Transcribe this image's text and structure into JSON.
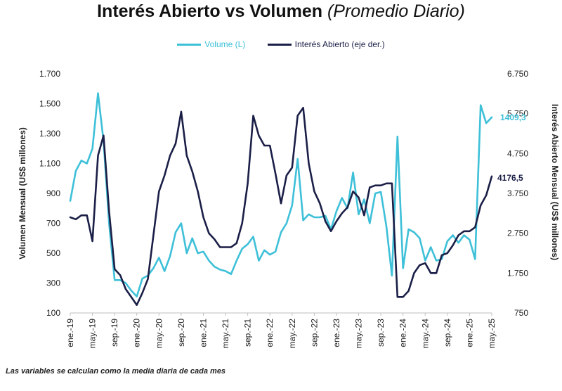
{
  "header": {
    "title": "Interés Abierto vs Volumen",
    "subtitle": "(Promedio Diario)"
  },
  "footnote": "Las variables se calculan como la media diaria de cada mes",
  "colors": {
    "volume": "#3ec0d8",
    "open_interest": "#1b1f47"
  },
  "chart_data": {
    "type": "line",
    "title": "Interés Abierto vs Volumen (Promedio Diario)",
    "ylabel_left": "Volumen Mensual (US$ millones)",
    "ylabel_right": "Interés Abierto Mensual (US$ millones)",
    "ylim_left": [
      100,
      1700
    ],
    "ylim_right": [
      750,
      6750
    ],
    "yticks_left": [
      "100",
      "300",
      "500",
      "700",
      "900",
      "1.100",
      "1.300",
      "1.500",
      "1.700"
    ],
    "yticks_right": [
      "750",
      "1.750",
      "2.750",
      "3.750",
      "4.750",
      "5.750",
      "6.750"
    ],
    "xtick_labels": [
      "ene.-19",
      "may.-19",
      "sep.-19",
      "ene.-20",
      "may.-20",
      "sep.-20",
      "ene.-21",
      "may.-21",
      "sep.-21",
      "ene.-22",
      "may.-22",
      "sep.-22",
      "ene.-23",
      "may.-23",
      "sep.-23",
      "ene.-24",
      "may.-24",
      "sep.-24",
      "ene.-25",
      "may.-25"
    ],
    "grid": false,
    "legend_position": "top-center",
    "x": [
      "ene.-19",
      "feb.-19",
      "mar.-19",
      "abr.-19",
      "may.-19",
      "jun.-19",
      "jul.-19",
      "ago.-19",
      "sep.-19",
      "oct.-19",
      "nov.-19",
      "dic.-19",
      "ene.-20",
      "feb.-20",
      "mar.-20",
      "abr.-20",
      "may.-20",
      "jun.-20",
      "jul.-20",
      "ago.-20",
      "sep.-20",
      "oct.-20",
      "nov.-20",
      "dic.-20",
      "ene.-21",
      "feb.-21",
      "mar.-21",
      "abr.-21",
      "may.-21",
      "jun.-21",
      "jul.-21",
      "ago.-21",
      "sep.-21",
      "oct.-21",
      "nov.-21",
      "dic.-21",
      "ene.-22",
      "feb.-22",
      "mar.-22",
      "abr.-22",
      "may.-22",
      "jun.-22",
      "jul.-22",
      "ago.-22",
      "sep.-22",
      "oct.-22",
      "nov.-22",
      "dic.-22",
      "ene.-23",
      "feb.-23",
      "mar.-23",
      "abr.-23",
      "may.-23",
      "jun.-23",
      "jul.-23",
      "ago.-23",
      "sep.-23",
      "oct.-23",
      "nov.-23",
      "dic.-23",
      "ene.-24",
      "feb.-24",
      "mar.-24",
      "abr.-24",
      "may.-24",
      "jun.-24",
      "jul.-24",
      "ago.-24",
      "sep.-24",
      "oct.-24",
      "nov.-24",
      "dic.-24",
      "ene.-25",
      "feb.-25",
      "mar.-25",
      "abr.-25",
      "may.-25"
    ],
    "series": [
      {
        "name": "Volume (L)",
        "axis": "left",
        "values": [
          850,
          1050,
          1120,
          1100,
          1200,
          1570,
          1250,
          700,
          320,
          320,
          300,
          250,
          210,
          330,
          350,
          400,
          470,
          380,
          480,
          640,
          700,
          500,
          600,
          500,
          510,
          450,
          410,
          390,
          380,
          360,
          450,
          530,
          560,
          610,
          450,
          520,
          490,
          510,
          640,
          700,
          820,
          1130,
          720,
          760,
          740,
          740,
          750,
          660,
          780,
          870,
          800,
          1040,
          760,
          860,
          700,
          900,
          910,
          680,
          350,
          1280,
          400,
          660,
          640,
          600,
          450,
          540,
          450,
          460,
          580,
          620,
          570,
          620,
          590,
          460,
          1490,
          1370,
          1409.3
        ]
      },
      {
        "name": "Interés Abierto (eje der.)",
        "axis": "right",
        "values": [
          3150,
          3100,
          3200,
          3200,
          2550,
          4700,
          5200,
          3300,
          1850,
          1700,
          1350,
          1150,
          950,
          1250,
          1600,
          2700,
          3800,
          4200,
          4700,
          5000,
          5800,
          4700,
          4300,
          3800,
          3150,
          2750,
          2600,
          2400,
          2400,
          2400,
          2500,
          3000,
          4000,
          5700,
          5200,
          4950,
          4950,
          4250,
          3500,
          4200,
          4400,
          5700,
          5900,
          4500,
          3800,
          3500,
          3050,
          2800,
          3050,
          3250,
          3400,
          3800,
          3650,
          3200,
          3900,
          3950,
          3950,
          4000,
          4000,
          1150,
          1150,
          1300,
          1750,
          1950,
          2000,
          1750,
          1750,
          2200,
          2250,
          2450,
          2700,
          2800,
          2800,
          2900,
          3450,
          3700,
          4176.5
        ]
      }
    ],
    "end_labels": {
      "volume": "1409,3",
      "open_interest": "4176,5"
    }
  }
}
